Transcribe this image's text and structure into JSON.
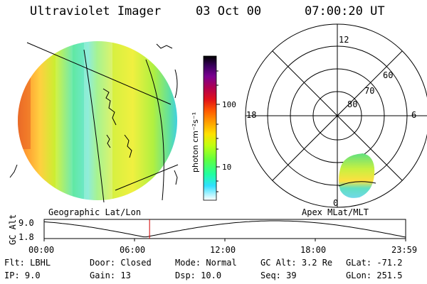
{
  "header": {
    "title": "Ultraviolet Imager",
    "date": "03 Oct 00",
    "time": "07:00:20 UT"
  },
  "colorbar": {
    "unit_label": "photon cm⁻²s⁻¹",
    "tick_labels": [
      "100",
      "10"
    ],
    "colors": [
      "#000000",
      "#3b0060",
      "#7a0090",
      "#a00060",
      "#d0002a",
      "#ff3b00",
      "#ff9a00",
      "#ffd000",
      "#c8ff00",
      "#70ff20",
      "#20ff90",
      "#20e0ff",
      "#a0f0ff",
      "#ffffff"
    ]
  },
  "left_map": {
    "caption": "Geographic Lat/Lon"
  },
  "right_map": {
    "caption": "Apex MLat/MLT",
    "mlt_labels": [
      "12",
      "18",
      "6",
      "0"
    ],
    "lat_labels": [
      "60",
      "70",
      "80"
    ]
  },
  "gc_plot": {
    "axis_label": "GC Alt",
    "y_ticks": [
      "9.0",
      "1.8"
    ],
    "x_ticks": [
      "00:00",
      "06:00",
      "12:00",
      "18:00",
      "23:59"
    ],
    "current_time_marker_hours": 7.0
  },
  "status": {
    "row1": [
      {
        "key": "Flt:",
        "value": "LBHL"
      },
      {
        "key": "Door:",
        "value": "Closed"
      },
      {
        "key": "Mode:",
        "value": "Normal"
      },
      {
        "key": "GC Alt:",
        "value": "3.2 Re"
      },
      {
        "key": "GLat:",
        "value": "-71.2"
      }
    ],
    "row2": [
      {
        "key": "IP:",
        "value": "9.0"
      },
      {
        "key": "Gain:",
        "value": "13"
      },
      {
        "key": "Dsp:",
        "value": "10.0"
      },
      {
        "key": "Seq:",
        "value": "39"
      },
      {
        "key": "GLon:",
        "value": "251.5"
      }
    ]
  }
}
